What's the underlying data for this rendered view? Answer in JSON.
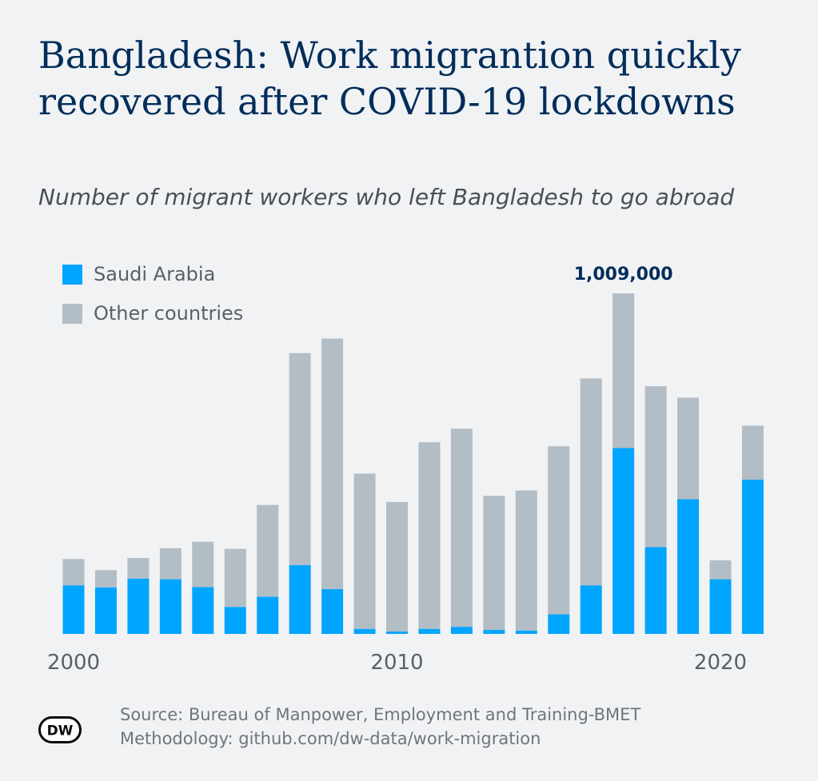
{
  "title": "Bangladesh: Work migrantion quickly recovered after COVID-19 lockdowns",
  "subtitle": "Number of migrant workers who left Bangladesh to go abroad",
  "legend": {
    "saudi": "Saudi Arabia",
    "other": "Other countries"
  },
  "colors": {
    "saudi": "#00a5ff",
    "other": "#b3bdc6",
    "annotation": "#002d5a",
    "axis": "#5a6068"
  },
  "source": "Source: Bureau of Manpower, Employment and Training-BMET",
  "methodology": "Methodology: github.com/dw-data/work-migration",
  "logo_text": "DW",
  "chart_data": {
    "type": "bar",
    "stacked": true,
    "categories": [
      2000,
      2001,
      2002,
      2003,
      2004,
      2005,
      2006,
      2007,
      2008,
      2009,
      2010,
      2011,
      2012,
      2013,
      2014,
      2015,
      2016,
      2017,
      2018,
      2019,
      2020,
      2021
    ],
    "x_tick_labels": [
      "2000",
      "2010",
      "2020"
    ],
    "x_tick_values": [
      2000,
      2010,
      2020
    ],
    "series": [
      {
        "name": "Saudi Arabia",
        "values": [
          144000,
          138000,
          164000,
          162000,
          139000,
          80000,
          110000,
          204000,
          133000,
          15000,
          7000,
          15000,
          21000,
          12000,
          10000,
          58000,
          144000,
          551000,
          257000,
          399000,
          162000,
          457000
        ]
      },
      {
        "name": "Other countries",
        "values": [
          78000,
          51000,
          61000,
          92000,
          134000,
          172000,
          272000,
          628000,
          742000,
          460000,
          384000,
          553000,
          587000,
          397000,
          415000,
          498000,
          613000,
          458000,
          477000,
          301000,
          56000,
          160000
        ]
      }
    ],
    "annotations": [
      {
        "category": 2017,
        "label": "1,009,000"
      }
    ],
    "ylim": [
      0,
      1050000
    ],
    "grid": false,
    "legend_position": "top-left"
  }
}
